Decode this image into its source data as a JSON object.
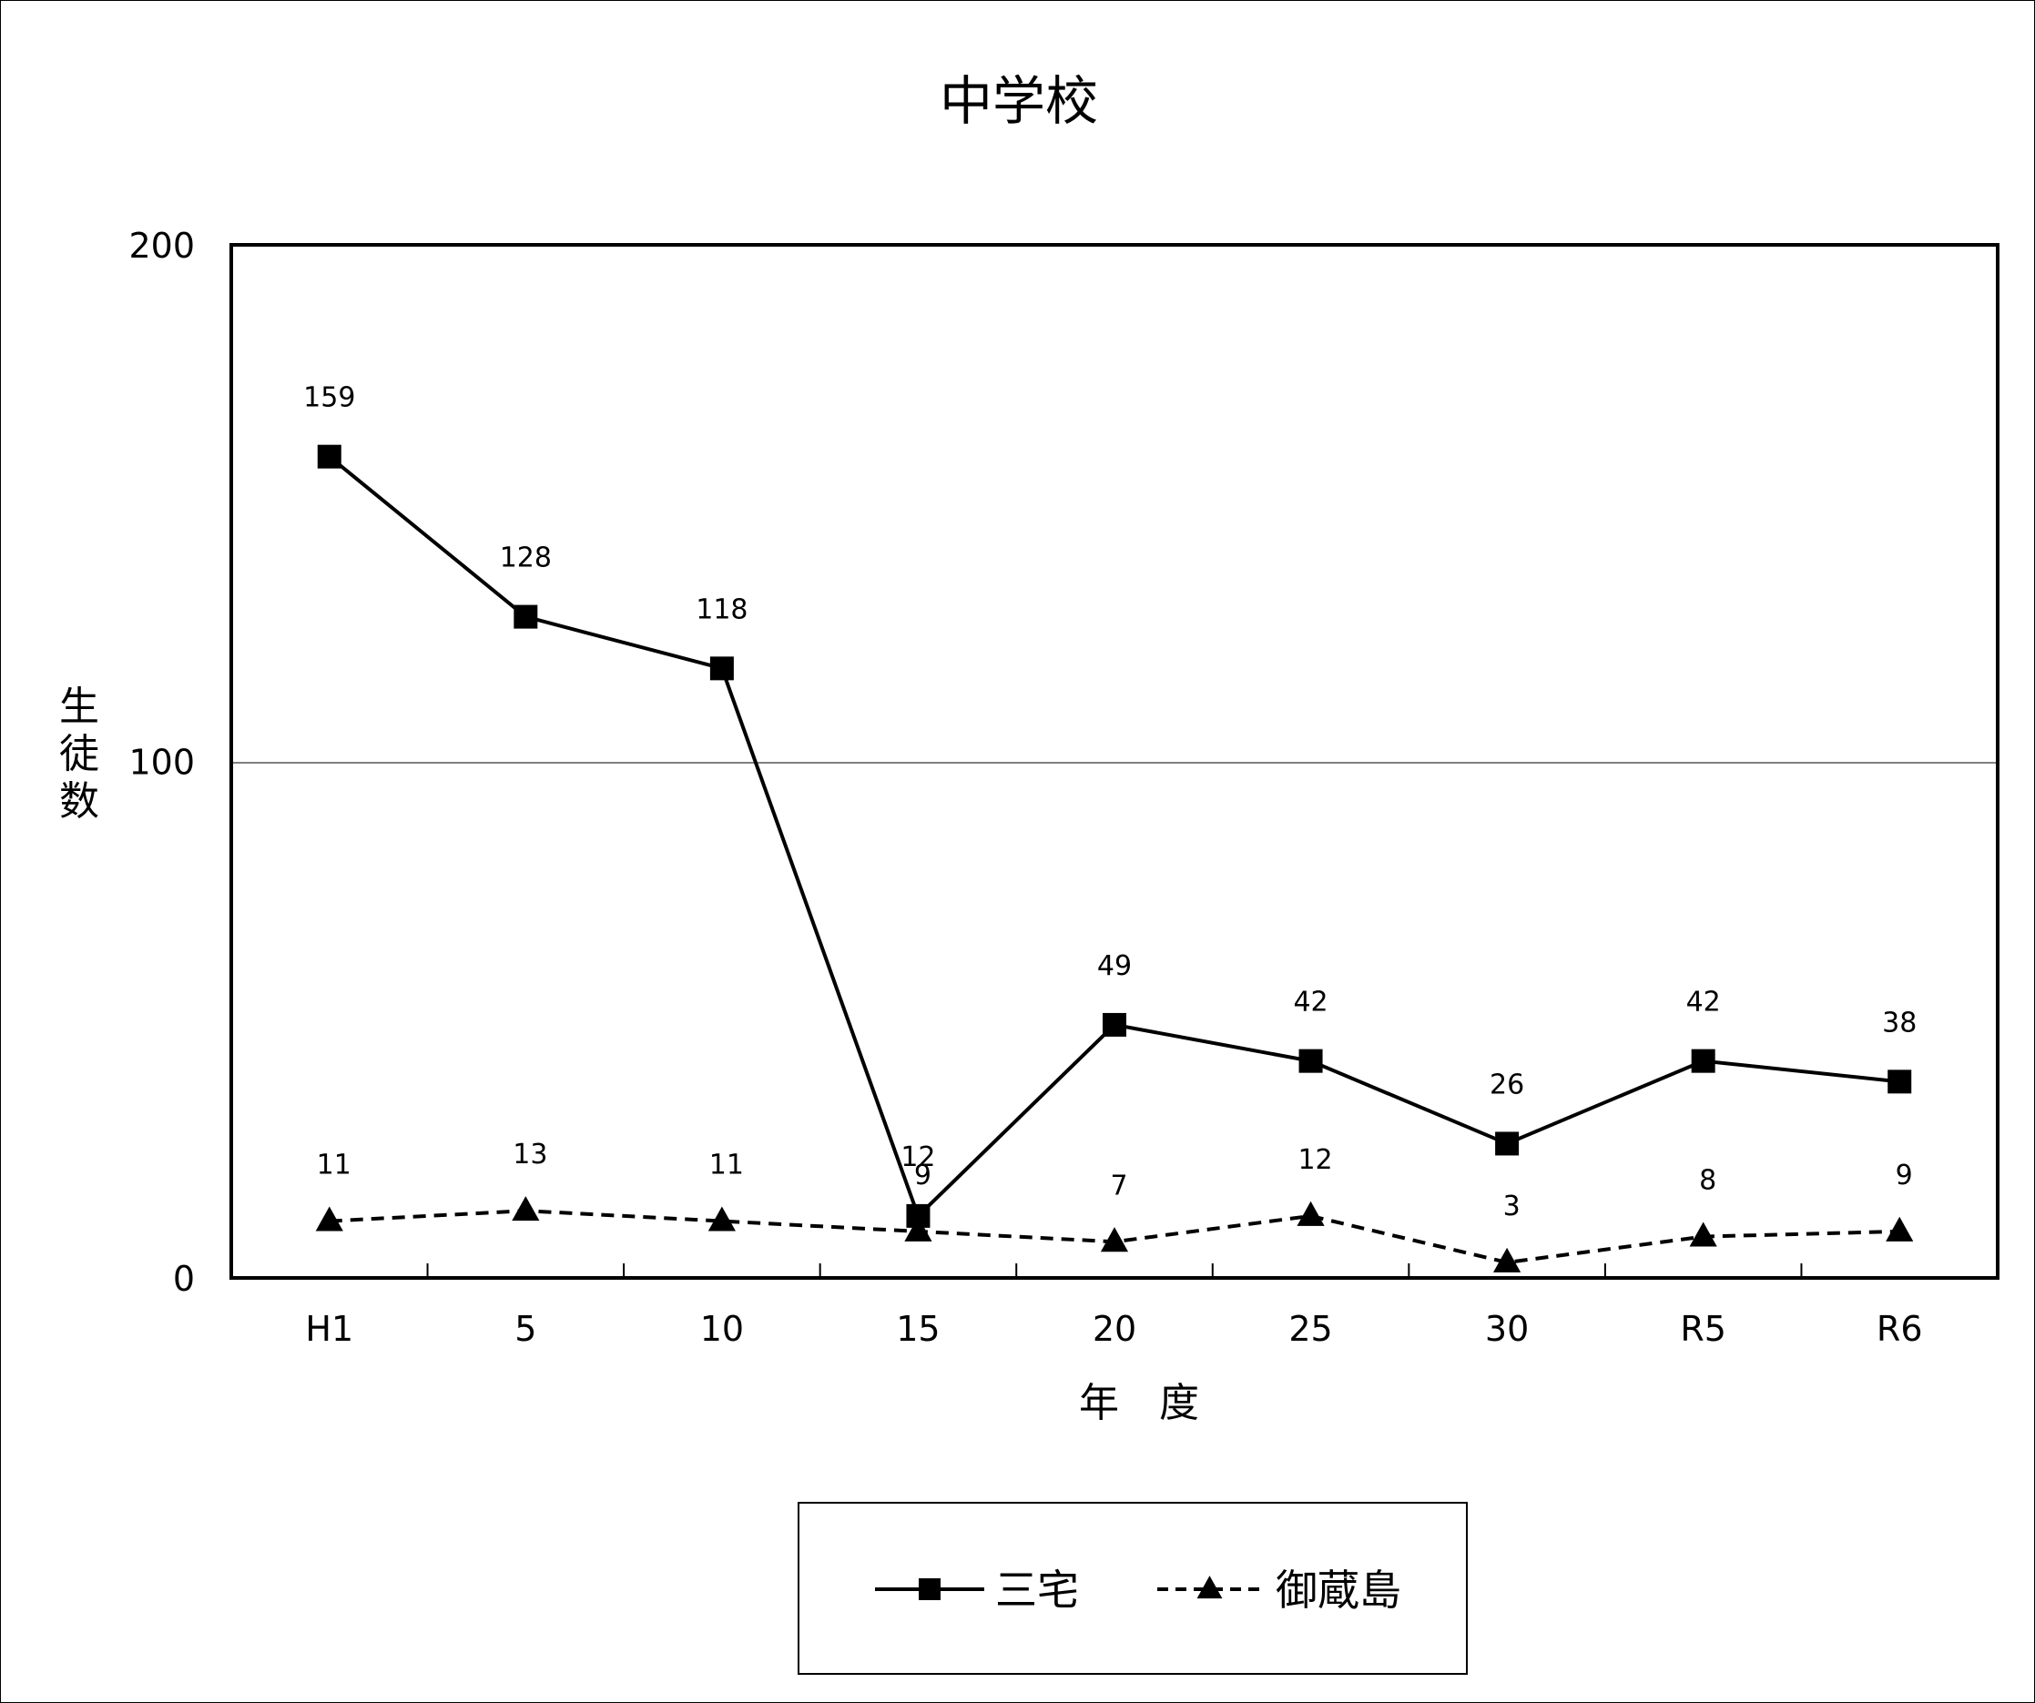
{
  "chart_data": {
    "type": "line",
    "title": "中学校",
    "xlabel": "年　度",
    "ylabel": "生徒数",
    "categories": [
      "H1",
      "5",
      "10",
      "15",
      "20",
      "25",
      "30",
      "R5",
      "R6"
    ],
    "ylim": [
      0,
      200
    ],
    "yticks": [
      "0",
      "100",
      "200"
    ],
    "grid": {
      "y": true,
      "x": false,
      "y_gridline_value": 100
    },
    "legend": {
      "position": "bottom-center",
      "boxed": true
    },
    "series": [
      {
        "name": "三宅",
        "values": [
          159,
          128,
          118,
          12,
          49,
          42,
          26,
          42,
          38
        ],
        "labels": [
          "159",
          "128",
          "118",
          "12",
          "49",
          "42",
          "26",
          "42",
          "38"
        ],
        "marker": "square",
        "line_style": "solid",
        "color": "#000000"
      },
      {
        "name": "御蔵島",
        "values": [
          11,
          13,
          11,
          9,
          7,
          12,
          3,
          8,
          9
        ],
        "labels": [
          "11",
          "13",
          "11",
          "9",
          "7",
          "12",
          "3",
          "8",
          "9"
        ],
        "marker": "triangle",
        "line_style": "dashed",
        "color": "#000000"
      }
    ],
    "colors": {
      "line": "#000000",
      "gridline": "#808080",
      "background": "#ffffff"
    }
  }
}
